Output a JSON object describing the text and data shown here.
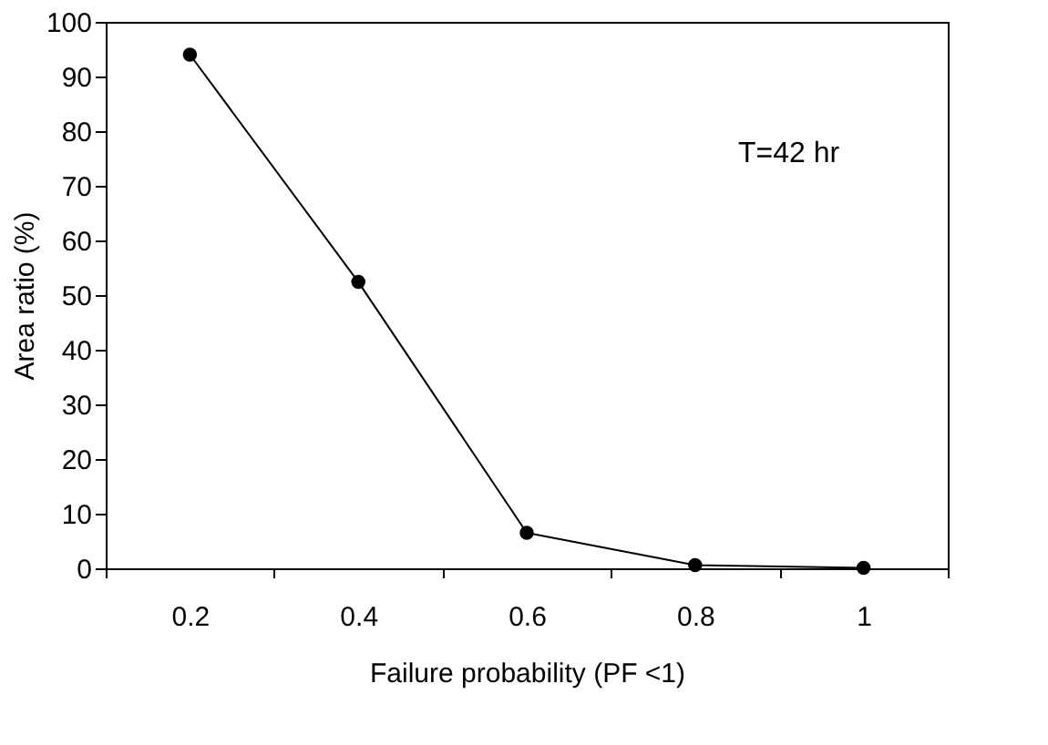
{
  "chart_data": {
    "type": "line",
    "xlabel": "Failure probability (PF <1)",
    "ylabel": "Area ratio (%)",
    "categories": [
      "0.2",
      "0.4",
      "0.6",
      "0.8",
      "1"
    ],
    "series": [
      {
        "color": "#000000",
        "values": [
          94,
          52.4,
          6.5,
          0.6,
          0.1
        ]
      }
    ],
    "ylim": [
      0,
      100
    ],
    "yticks": [
      0,
      10,
      20,
      30,
      40,
      50,
      60,
      70,
      80,
      90,
      100
    ],
    "annotations": [
      "T=42 hr"
    ],
    "marker": "circle",
    "line_style": "solid",
    "grid": false
  }
}
